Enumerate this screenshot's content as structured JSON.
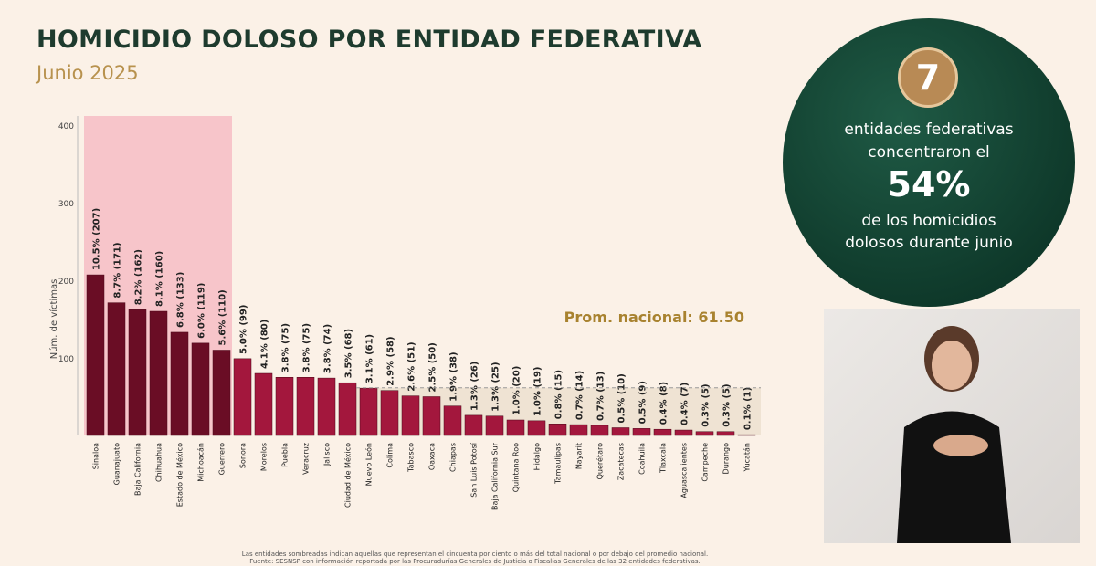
{
  "header": {
    "title": "HOMICIDIO DOLOSO POR ENTIDAD FEDERATIVA",
    "subtitle": "Junio 2025"
  },
  "chart_data": {
    "type": "bar",
    "title": "HOMICIDIO DOLOSO POR ENTIDAD FEDERATIVA",
    "subtitle": "Junio 2025",
    "ylabel": "Núm. de víctimas",
    "ylim": [
      0,
      410
    ],
    "yticks": [
      100,
      200,
      300,
      400
    ],
    "categories": [
      "Sinaloa",
      "Guanajuato",
      "Baja California",
      "Chihuahua",
      "Estado de México",
      "Michoacán",
      "Guerrero",
      "Sonora",
      "Morelos",
      "Puebla",
      "Veracruz",
      "Jalisco",
      "Ciudad de México",
      "Nuevo León",
      "Colima",
      "Tabasco",
      "Oaxaca",
      "Chiapas",
      "San Luis Potosí",
      "Baja California Sur",
      "Quintana Roo",
      "Hidalgo",
      "Tamaulipas",
      "Nayarit",
      "Querétaro",
      "Zacatecas",
      "Coahuila",
      "Tlaxcala",
      "Aguascalientes",
      "Campeche",
      "Durango",
      "Yucatán"
    ],
    "values": [
      207,
      171,
      162,
      160,
      133,
      119,
      110,
      99,
      80,
      75,
      75,
      74,
      68,
      61,
      58,
      51,
      50,
      38,
      26,
      25,
      20,
      19,
      15,
      14,
      13,
      10,
      9,
      8,
      7,
      5,
      5,
      1
    ],
    "labels": [
      "10.5% (207)",
      "8.7% (171)",
      "8.2% (162)",
      "8.1% (160)",
      "6.8% (133)",
      "6.0% (119)",
      "5.6% (110)",
      "5.0% (99)",
      "4.1% (80)",
      "3.8% (75)",
      "3.8% (75)",
      "3.8% (74)",
      "3.5% (68)",
      "3.1% (61)",
      "2.9% (58)",
      "2.6% (51)",
      "2.5% (50)",
      "1.9% (38)",
      "1.3% (26)",
      "1.3% (25)",
      "1.0% (20)",
      "1.0% (19)",
      "0.8% (15)",
      "0.7% (14)",
      "0.7% (13)",
      "0.5% (10)",
      "0.5% (9)",
      "0.4% (8)",
      "0.4% (7)",
      "0.3% (5)",
      "0.3% (5)",
      "0.1% (1)"
    ],
    "highlight_count": 7,
    "average": {
      "value": 61.5,
      "label": "Prom. nacional: 61.50"
    },
    "colors": {
      "top": "#6a0d25",
      "rest": "#a3173d",
      "shade": "#f7c5ca",
      "below_avg_shade": "#efe3d3",
      "avg_label": "#a8822f"
    }
  },
  "footnote": [
    "Las entidades sombreadas indican aquellas que representan el cincuenta por ciento o más del total nacional o por debajo del promedio nacional.",
    "Fuente: SESNSP con información reportada por las Procuradurías Generales de Justicia o Fiscalías Generales de las 32 entidades federativas."
  ],
  "callout": {
    "number": "7",
    "line1": "entidades federativas",
    "line2": "concentraron el",
    "percent": "54%",
    "line3": "de los homicidios",
    "line4": "dolosos durante junio"
  }
}
